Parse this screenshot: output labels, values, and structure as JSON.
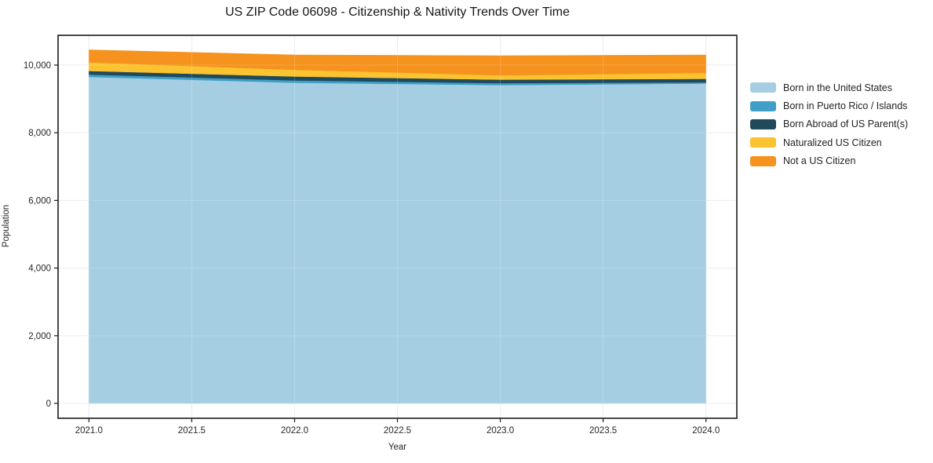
{
  "page": {
    "title": "US ZIP Code 06098 - Citizenship & Nativity Trends Over Time"
  },
  "chart_data": {
    "type": "area",
    "stacked": true,
    "title": "US ZIP Code 06098 - Citizenship & Nativity Trends Over Time",
    "xlabel": "Year",
    "ylabel": "Population",
    "x": [
      2021,
      2022,
      2023,
      2024
    ],
    "xlim": [
      2020.85,
      2024.15
    ],
    "ylim": [
      -440,
      10880
    ],
    "xticks": {
      "values": [
        2021.0,
        2021.5,
        2022.0,
        2022.5,
        2023.0,
        2023.5,
        2024.0
      ],
      "labels": [
        "2021.0",
        "2021.5",
        "2022.0",
        "2022.5",
        "2023.0",
        "2023.5",
        "2024.0"
      ]
    },
    "yticks": {
      "values": [
        0,
        2000,
        4000,
        6000,
        8000,
        10000
      ],
      "labels": [
        "0",
        "2,000",
        "4,000",
        "6,000",
        "8,000",
        "10,000"
      ]
    },
    "grid": true,
    "legend_position": "right-outside",
    "frame_color": "#1a1a1a",
    "grid_color": "#e8e8e8",
    "series": [
      {
        "name": "Born in the United States",
        "color": "#a6cee3",
        "values": [
          9650,
          9478,
          9408,
          9455
        ]
      },
      {
        "name": "Born in Puerto Rico / Islands",
        "color": "#3f9fc6",
        "values": [
          72,
          69,
          58,
          35
        ]
      },
      {
        "name": "Born Abroad of US Parent(s)",
        "color": "#20495c",
        "values": [
          104,
          116,
          104,
          103
        ]
      },
      {
        "name": "Naturalized US Citizen",
        "color": "#fcc330",
        "values": [
          255,
          197,
          128,
          175
        ]
      },
      {
        "name": "Not a US Citizen",
        "color": "#f6921e",
        "values": [
          370,
          441,
          580,
          532
        ]
      }
    ]
  }
}
